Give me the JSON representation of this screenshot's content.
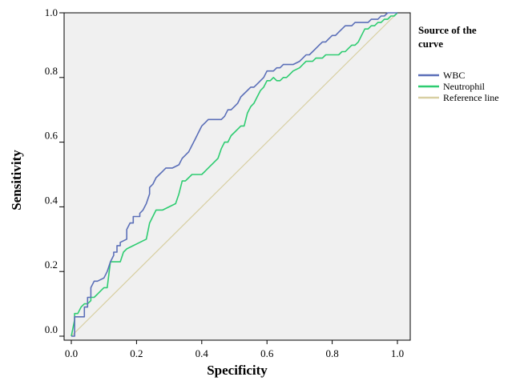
{
  "chart_data": {
    "type": "line",
    "title": "",
    "xlabel": "Specificity",
    "ylabel": "Sensitivity",
    "xlim": [
      0,
      1
    ],
    "ylim": [
      0,
      1
    ],
    "x_ticks": [
      "0.0",
      "0.2",
      "0.4",
      "0.6",
      "0.8",
      "1.0"
    ],
    "y_ticks": [
      "0.0",
      "0.2",
      "0.4",
      "0.6",
      "0.8",
      "1.0"
    ],
    "grid": false,
    "background_color": "#f0f0f0",
    "legend": {
      "title_line1": "Source of the",
      "title_line2": "curve",
      "placement": "right"
    },
    "series": [
      {
        "name": "WBC",
        "color": "#5b6fb8",
        "x": [
          0,
          0.01,
          0.01,
          0.04,
          0.04,
          0.05,
          0.05,
          0.06,
          0.06,
          0.07,
          0.08,
          0.1,
          0.11,
          0.12,
          0.13,
          0.13,
          0.14,
          0.14,
          0.15,
          0.15,
          0.17,
          0.17,
          0.18,
          0.19,
          0.19,
          0.21,
          0.21,
          0.22,
          0.23,
          0.24,
          0.24,
          0.25,
          0.26,
          0.27,
          0.28,
          0.29,
          0.3,
          0.31,
          0.33,
          0.34,
          0.35,
          0.36,
          0.37,
          0.38,
          0.38,
          0.39,
          0.4,
          0.41,
          0.42,
          0.43,
          0.44,
          0.45,
          0.46,
          0.47,
          0.48,
          0.49,
          0.5,
          0.51,
          0.52,
          0.53,
          0.54,
          0.55,
          0.56,
          0.57,
          0.58,
          0.59,
          0.6,
          0.61,
          0.62,
          0.63,
          0.64,
          0.65,
          0.66,
          0.67,
          0.68,
          0.7,
          0.71,
          0.72,
          0.73,
          0.74,
          0.75,
          0.76,
          0.77,
          0.78,
          0.79,
          0.8,
          0.81,
          0.82,
          0.83,
          0.84,
          0.85,
          0.86,
          0.87,
          0.88,
          0.89,
          0.9,
          0.91,
          0.92,
          0.93,
          0.94,
          0.95,
          0.96,
          0.97,
          0.98,
          0.99,
          1.0
        ],
        "y": [
          0,
          0,
          0.06,
          0.06,
          0.09,
          0.09,
          0.12,
          0.12,
          0.15,
          0.17,
          0.17,
          0.18,
          0.2,
          0.23,
          0.25,
          0.26,
          0.26,
          0.28,
          0.28,
          0.29,
          0.3,
          0.33,
          0.35,
          0.35,
          0.37,
          0.37,
          0.38,
          0.39,
          0.41,
          0.44,
          0.46,
          0.47,
          0.49,
          0.5,
          0.51,
          0.52,
          0.52,
          0.52,
          0.53,
          0.55,
          0.56,
          0.57,
          0.59,
          0.61,
          0.61,
          0.63,
          0.65,
          0.66,
          0.67,
          0.67,
          0.67,
          0.67,
          0.67,
          0.68,
          0.7,
          0.7,
          0.71,
          0.72,
          0.74,
          0.75,
          0.76,
          0.77,
          0.77,
          0.78,
          0.79,
          0.8,
          0.82,
          0.82,
          0.82,
          0.83,
          0.83,
          0.84,
          0.84,
          0.84,
          0.84,
          0.85,
          0.86,
          0.87,
          0.87,
          0.88,
          0.89,
          0.9,
          0.91,
          0.91,
          0.92,
          0.93,
          0.93,
          0.94,
          0.95,
          0.96,
          0.96,
          0.96,
          0.97,
          0.97,
          0.97,
          0.97,
          0.97,
          0.98,
          0.98,
          0.98,
          0.99,
          0.99,
          1.0,
          1.0,
          1.0,
          1.0
        ]
      },
      {
        "name": "Neutrophil",
        "color": "#2ecc71",
        "x": [
          0,
          0.01,
          0.01,
          0.02,
          0.03,
          0.04,
          0.05,
          0.06,
          0.06,
          0.07,
          0.08,
          0.09,
          0.1,
          0.11,
          0.12,
          0.13,
          0.14,
          0.15,
          0.16,
          0.17,
          0.19,
          0.21,
          0.23,
          0.24,
          0.26,
          0.28,
          0.3,
          0.32,
          0.33,
          0.34,
          0.35,
          0.36,
          0.37,
          0.38,
          0.4,
          0.41,
          0.42,
          0.44,
          0.45,
          0.46,
          0.47,
          0.48,
          0.49,
          0.5,
          0.51,
          0.52,
          0.53,
          0.54,
          0.55,
          0.56,
          0.57,
          0.58,
          0.59,
          0.6,
          0.61,
          0.62,
          0.63,
          0.64,
          0.65,
          0.66,
          0.67,
          0.68,
          0.7,
          0.71,
          0.72,
          0.73,
          0.74,
          0.75,
          0.76,
          0.77,
          0.78,
          0.79,
          0.8,
          0.81,
          0.82,
          0.83,
          0.84,
          0.85,
          0.86,
          0.87,
          0.88,
          0.89,
          0.9,
          0.91,
          0.92,
          0.93,
          0.94,
          0.95,
          0.96,
          0.97,
          0.98,
          0.99,
          1.0
        ],
        "y": [
          0,
          0.05,
          0.07,
          0.07,
          0.09,
          0.1,
          0.1,
          0.11,
          0.12,
          0.12,
          0.13,
          0.14,
          0.15,
          0.15,
          0.23,
          0.23,
          0.23,
          0.23,
          0.26,
          0.27,
          0.28,
          0.29,
          0.3,
          0.35,
          0.39,
          0.39,
          0.4,
          0.41,
          0.44,
          0.48,
          0.48,
          0.49,
          0.5,
          0.5,
          0.5,
          0.51,
          0.52,
          0.54,
          0.55,
          0.58,
          0.6,
          0.6,
          0.62,
          0.63,
          0.64,
          0.65,
          0.65,
          0.69,
          0.71,
          0.72,
          0.74,
          0.76,
          0.77,
          0.79,
          0.79,
          0.8,
          0.79,
          0.79,
          0.8,
          0.8,
          0.81,
          0.82,
          0.83,
          0.84,
          0.85,
          0.85,
          0.85,
          0.86,
          0.86,
          0.86,
          0.87,
          0.87,
          0.87,
          0.87,
          0.87,
          0.88,
          0.88,
          0.89,
          0.9,
          0.9,
          0.91,
          0.93,
          0.95,
          0.95,
          0.96,
          0.96,
          0.97,
          0.97,
          0.98,
          0.98,
          0.99,
          0.99,
          1.0
        ]
      },
      {
        "name": "Reference line",
        "color": "#d8cfa2",
        "x": [
          0,
          1
        ],
        "y": [
          0,
          1
        ]
      }
    ]
  }
}
